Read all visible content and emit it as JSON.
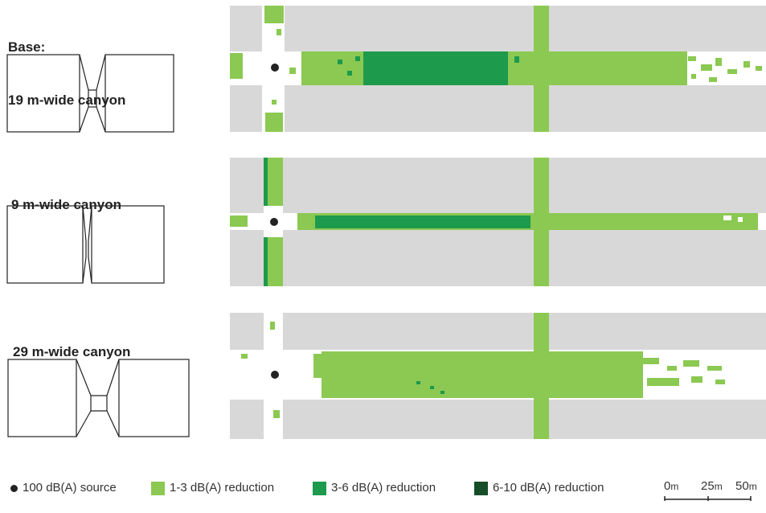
{
  "colors": {
    "road": "#ffffff",
    "building": "#d8d8d8",
    "r1": "#8bc952",
    "r2": "#1e9a4c",
    "r3": "#154d28",
    "source": "#222222"
  },
  "sections": [
    {
      "title_line1": "Base:",
      "title_line2": "19 m-wide canyon",
      "canyon_width_m": 19
    },
    {
      "title_line1": "9 m-wide canyon",
      "title_line2": "",
      "canyon_width_m": 9
    },
    {
      "title_line1": "29 m-wide canyon",
      "title_line2": "",
      "canyon_width_m": 29
    }
  ],
  "legend": {
    "source": "100 dB(A) source",
    "r1": "1-3 dB(A) reduction",
    "r2": "3-6 dB(A) reduction",
    "r3": "6-10 dB(A) reduction"
  },
  "scale": {
    "tick0": "0",
    "tick1": "25",
    "tick2": "50",
    "unit": "m"
  }
}
